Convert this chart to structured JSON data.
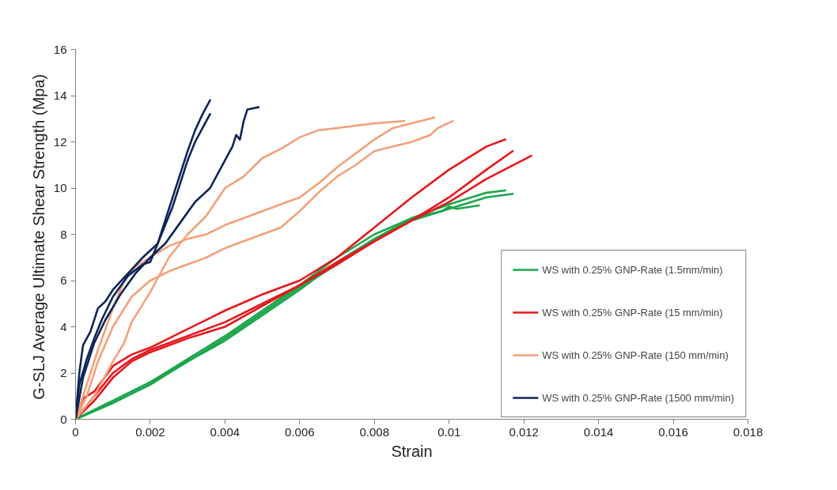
{
  "chart_data": {
    "type": "line",
    "xlabel": "Strain",
    "ylabel": "G-SLJ Average Ultimate Shear Strength  (Mpa)",
    "xlim": [
      0,
      0.018
    ],
    "xticks": [
      0,
      0.002,
      0.004,
      0.006,
      0.008,
      0.01,
      0.012,
      0.014,
      0.016,
      0.018
    ],
    "ylim": [
      0,
      16
    ],
    "yticks": [
      0,
      2,
      4,
      6,
      8,
      10,
      12,
      14,
      16
    ],
    "grid": false,
    "legend": "bottom right",
    "line_style": "solid",
    "marker": "none",
    "series": [
      {
        "name": "WS with 0.25% GNP-Rate (1.5mm/min)",
        "color": "#1aa64a",
        "x": [
          0,
          0.001,
          0.002,
          0.003,
          0.004,
          0.005,
          0.006,
          0.007,
          0.008,
          0.009,
          0.01,
          0.011,
          0.0115
        ],
        "values": [
          0,
          0.8,
          1.6,
          2.6,
          3.6,
          4.7,
          5.8,
          7.0,
          8.0,
          8.7,
          9.3,
          9.8,
          9.9
        ]
      },
      {
        "color": "#1aa64a",
        "x": [
          0,
          0.001,
          0.002,
          0.003,
          0.004,
          0.005,
          0.006,
          0.007,
          0.008,
          0.009,
          0.01,
          0.011,
          0.0117
        ],
        "values": [
          0,
          0.7,
          1.5,
          2.5,
          3.4,
          4.5,
          5.6,
          6.8,
          7.8,
          8.6,
          9.1,
          9.6,
          9.75
        ]
      },
      {
        "color": "#1aa64a",
        "x": [
          0,
          0.001,
          0.002,
          0.003,
          0.004,
          0.005,
          0.006,
          0.007,
          0.008,
          0.009,
          0.0098,
          0.01,
          0.0102,
          0.0108
        ],
        "values": [
          0,
          0.8,
          1.6,
          2.5,
          3.5,
          4.6,
          5.7,
          6.7,
          7.8,
          8.7,
          9.0,
          9.2,
          9.1,
          9.25
        ]
      },
      {
        "name": "WS with 0.25% GNP-Rate (15 mm/min)",
        "color": "#e8161b",
        "x": [
          0,
          0.0002,
          0.0005,
          0.001,
          0.0015,
          0.002,
          0.003,
          0.004,
          0.005,
          0.006,
          0.007,
          0.008,
          0.009,
          0.01,
          0.011,
          0.0115
        ],
        "values": [
          0,
          0.9,
          1.2,
          2.3,
          2.8,
          3.1,
          3.9,
          4.7,
          5.4,
          6.0,
          7.0,
          8.3,
          9.6,
          10.8,
          11.8,
          12.1
        ]
      },
      {
        "color": "#e8161b",
        "x": [
          0,
          0.0005,
          0.001,
          0.0015,
          0.002,
          0.003,
          0.004,
          0.005,
          0.006,
          0.007,
          0.008,
          0.009,
          0.01,
          0.011,
          0.0117
        ],
        "values": [
          0,
          1.0,
          2.0,
          2.6,
          3.0,
          3.6,
          4.2,
          5.0,
          5.8,
          6.7,
          7.7,
          8.6,
          9.6,
          10.8,
          11.6
        ]
      },
      {
        "color": "#e8161b",
        "x": [
          0,
          0.0005,
          0.001,
          0.0015,
          0.002,
          0.003,
          0.004,
          0.005,
          0.006,
          0.007,
          0.008,
          0.009,
          0.01,
          0.011,
          0.0122
        ],
        "values": [
          0,
          0.8,
          1.8,
          2.5,
          2.9,
          3.5,
          4.0,
          4.9,
          5.8,
          6.8,
          7.7,
          8.6,
          9.4,
          10.4,
          11.4
        ]
      },
      {
        "name": "WS with 0.25% GNP-Rate (150 mm/min)",
        "color": "#f4a07a",
        "x": [
          0,
          0.0005,
          0.001,
          0.0013,
          0.0015,
          0.002,
          0.0025,
          0.003,
          0.0035,
          0.004,
          0.0045,
          0.005,
          0.0055,
          0.006,
          0.0065,
          0.007,
          0.0075,
          0.008,
          0.0088
        ],
        "values": [
          0,
          1.0,
          2.5,
          3.3,
          4.2,
          5.5,
          7.0,
          8.0,
          8.8,
          10.0,
          10.5,
          11.3,
          11.7,
          12.2,
          12.5,
          12.6,
          12.7,
          12.8,
          12.9
        ]
      },
      {
        "color": "#f4a07a",
        "x": [
          0,
          0.0003,
          0.0006,
          0.001,
          0.0013,
          0.0016,
          0.002,
          0.0025,
          0.003,
          0.0035,
          0.004,
          0.005,
          0.006,
          0.0065,
          0.007,
          0.0075,
          0.008,
          0.0085,
          0.009,
          0.0096
        ],
        "values": [
          0,
          1.5,
          3.0,
          4.8,
          6.0,
          6.6,
          7.0,
          7.5,
          7.8,
          8.0,
          8.4,
          9.0,
          9.6,
          10.2,
          10.9,
          11.5,
          12.1,
          12.6,
          12.8,
          13.05
        ]
      },
      {
        "color": "#f4a07a",
        "x": [
          0,
          0.0003,
          0.0006,
          0.001,
          0.0015,
          0.002,
          0.0025,
          0.003,
          0.0035,
          0.004,
          0.005,
          0.0055,
          0.006,
          0.0065,
          0.007,
          0.0075,
          0.008,
          0.0085,
          0.009,
          0.0095,
          0.0097,
          0.0101
        ],
        "values": [
          0,
          1.0,
          2.5,
          4.0,
          5.3,
          6.0,
          6.4,
          6.7,
          7.0,
          7.4,
          8.0,
          8.3,
          9.0,
          9.8,
          10.5,
          11.0,
          11.6,
          11.8,
          12.0,
          12.3,
          12.6,
          12.9
        ]
      },
      {
        "name": "WS with 0.25% GNP-Rate (1500 mm/min)",
        "color": "#0d2557",
        "x": [
          0,
          0.0001,
          0.0002,
          0.0004,
          0.0006,
          0.0008,
          0.001,
          0.0014,
          0.0018,
          0.002,
          0.0022,
          0.0024,
          0.0026,
          0.0028,
          0.003,
          0.0032,
          0.0034,
          0.0036
        ],
        "values": [
          0,
          2.0,
          3.2,
          3.8,
          4.8,
          5.1,
          5.6,
          6.3,
          7.0,
          7.3,
          7.6,
          8.6,
          9.6,
          10.6,
          11.6,
          12.5,
          13.2,
          13.8
        ]
      },
      {
        "color": "#0d2557",
        "x": [
          0,
          0.0001,
          0.0003,
          0.0005,
          0.0007,
          0.001,
          0.0014,
          0.0018,
          0.002,
          0.0022,
          0.0024,
          0.0026,
          0.0028,
          0.003,
          0.0032,
          0.0034,
          0.0036
        ],
        "values": [
          0,
          1.5,
          2.6,
          3.5,
          4.3,
          5.3,
          6.2,
          6.7,
          6.8,
          7.6,
          8.4,
          9.2,
          10.2,
          11.2,
          12.0,
          12.6,
          13.2
        ]
      },
      {
        "color": "#0d2557",
        "x": [
          0,
          0.0002,
          0.0005,
          0.0008,
          0.0012,
          0.0016,
          0.002,
          0.0024,
          0.0028,
          0.0032,
          0.0036,
          0.004,
          0.0042,
          0.0043,
          0.0044,
          0.0045,
          0.0046,
          0.0049
        ],
        "values": [
          0,
          1.8,
          3.3,
          4.3,
          5.4,
          6.3,
          7.0,
          7.6,
          8.5,
          9.4,
          10.0,
          11.2,
          11.8,
          12.3,
          12.1,
          12.9,
          13.4,
          13.5
        ]
      }
    ]
  }
}
